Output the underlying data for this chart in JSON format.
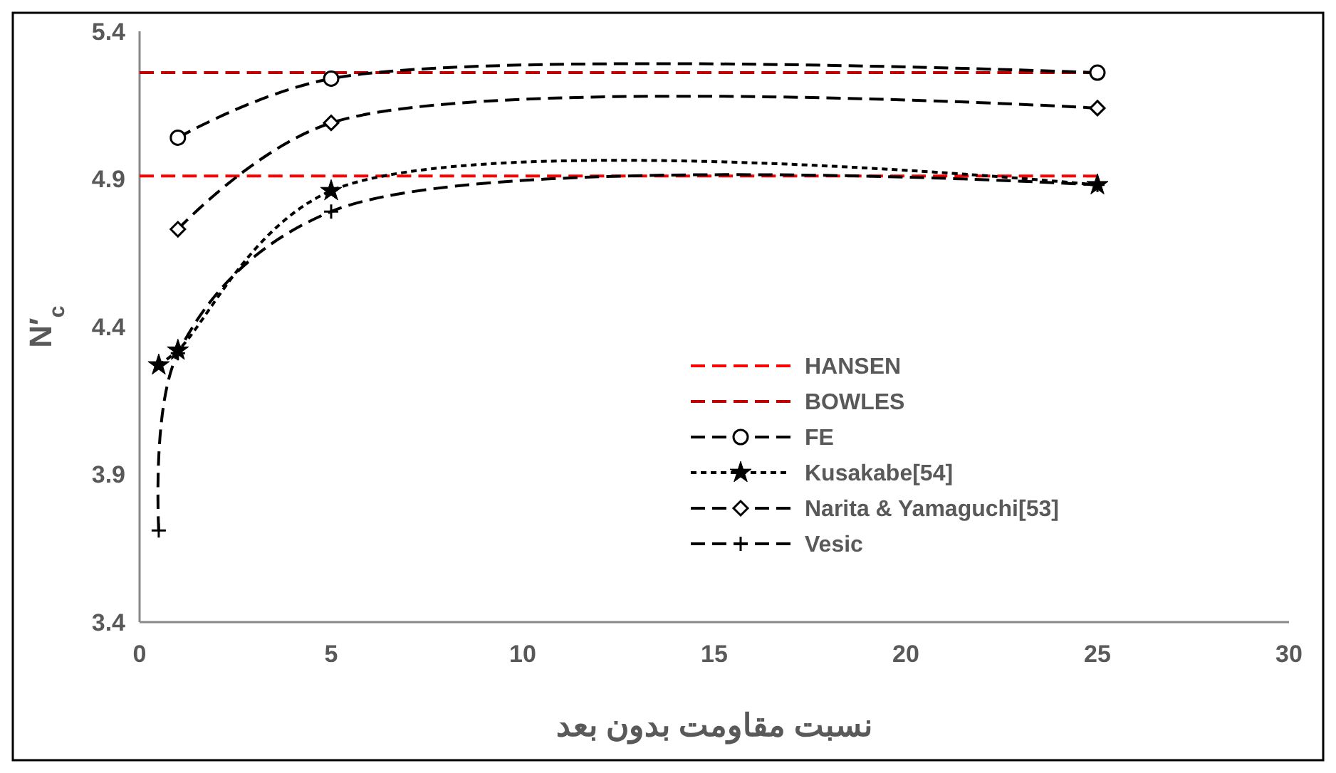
{
  "chart_data": {
    "type": "line",
    "xlabel": "نسبت مقاومت بدون بعد",
    "ylabel": "N′$_{c}$",
    "xlim": [
      0,
      30
    ],
    "xticks": [
      0,
      5,
      10,
      15,
      20,
      25,
      30
    ],
    "ylim": [
      3.4,
      5.4
    ],
    "yticks": [
      3.4,
      3.9,
      4.4,
      4.9,
      5.4
    ],
    "grid": false,
    "legend": "bottom right",
    "series": [
      {
        "name": "HANSEN",
        "color": "#ff0000",
        "x": [
          0,
          25
        ],
        "values": [
          4.91,
          4.91
        ],
        "marker": "none",
        "line_style": "dashed"
      },
      {
        "name": "BOWLES",
        "color": "#c00000",
        "x": [
          0,
          25
        ],
        "values": [
          5.26,
          5.26
        ],
        "marker": "none",
        "line_style": "dashed"
      },
      {
        "name": "FE",
        "color": "#000000",
        "x": [
          1,
          5,
          25
        ],
        "values": [
          5.04,
          5.24,
          5.26
        ],
        "marker": "circle",
        "line_style": "dashed"
      },
      {
        "name": "Kusakabe[54]",
        "color": "#000000",
        "x": [
          0.5,
          1,
          5,
          25
        ],
        "values": [
          4.27,
          4.32,
          4.86,
          4.88
        ],
        "marker": "star",
        "line_style": "dotted"
      },
      {
        "name": "Narita & Yamaguchi[53]",
        "color": "#000000",
        "x": [
          1,
          5,
          25
        ],
        "values": [
          4.73,
          5.09,
          5.14
        ],
        "marker": "diamond",
        "line_style": "dashed"
      },
      {
        "name": "Vesic",
        "color": "#000000",
        "x": [
          0.5,
          1,
          5,
          25
        ],
        "values": [
          3.71,
          4.31,
          4.79,
          4.88
        ],
        "marker": "cross",
        "line_style": "dashed"
      }
    ]
  }
}
